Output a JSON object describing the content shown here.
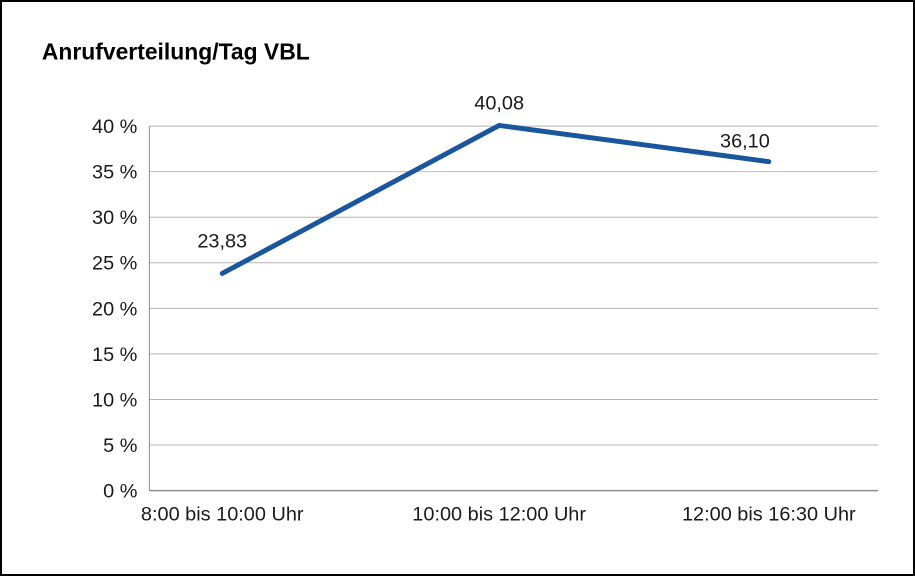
{
  "chart_data": {
    "type": "line",
    "title": "Anrufverteilung/Tag VBL",
    "categories": [
      "8:00 bis 10:00 Uhr",
      "10:00 bis 12:00 Uhr",
      "12:00 bis 16:30 Uhr"
    ],
    "values": [
      23.83,
      40.08,
      36.1
    ],
    "data_labels": [
      "23,83",
      "40,08",
      "36,10"
    ],
    "xlabel": "",
    "ylabel": "",
    "ylim": [
      0,
      40
    ],
    "ytick_step": 5,
    "ytick_suffix": " %",
    "grid": true,
    "legend": "none",
    "line_color": "#1a569e",
    "grid_color": "#b3b3b3",
    "axis_color": "#8c8c8c",
    "text_color": "#1a1a1a",
    "background_color": "#ffffff",
    "border_color": "#000000"
  }
}
